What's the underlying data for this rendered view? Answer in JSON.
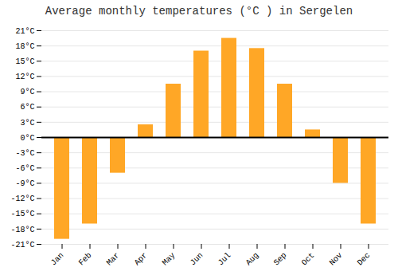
{
  "chart_data": {
    "type": "bar",
    "title": "Average monthly temperatures (°C ) in Sergelen",
    "categories": [
      "Jan",
      "Feb",
      "Mar",
      "Apr",
      "May",
      "Jun",
      "Jul",
      "Aug",
      "Sep",
      "Oct",
      "Nov",
      "Dec"
    ],
    "values": [
      -20,
      -17,
      -7,
      2.5,
      10.5,
      17,
      19.5,
      17.5,
      10.5,
      1.5,
      -9,
      -17
    ],
    "color": "#FFA726",
    "ylim": [
      -21,
      21
    ],
    "yticks": [
      {
        "value": -21,
        "label": "-21°C"
      },
      {
        "value": -18,
        "label": "-18°C"
      },
      {
        "value": -15,
        "label": "-15°C"
      },
      {
        "value": -12,
        "label": "-12°C"
      },
      {
        "value": -9,
        "label": "-9°C"
      },
      {
        "value": -6,
        "label": "-6°C"
      },
      {
        "value": -3,
        "label": "-3°C"
      },
      {
        "value": 0,
        "label": "0°C"
      },
      {
        "value": 3,
        "label": "3°C"
      },
      {
        "value": 6,
        "label": "6°C"
      },
      {
        "value": 9,
        "label": "9°C"
      },
      {
        "value": 12,
        "label": "12°C"
      },
      {
        "value": 15,
        "label": "15°C"
      },
      {
        "value": 18,
        "label": "18°C"
      },
      {
        "value": 21,
        "label": "21°C"
      }
    ],
    "grid": true
  }
}
